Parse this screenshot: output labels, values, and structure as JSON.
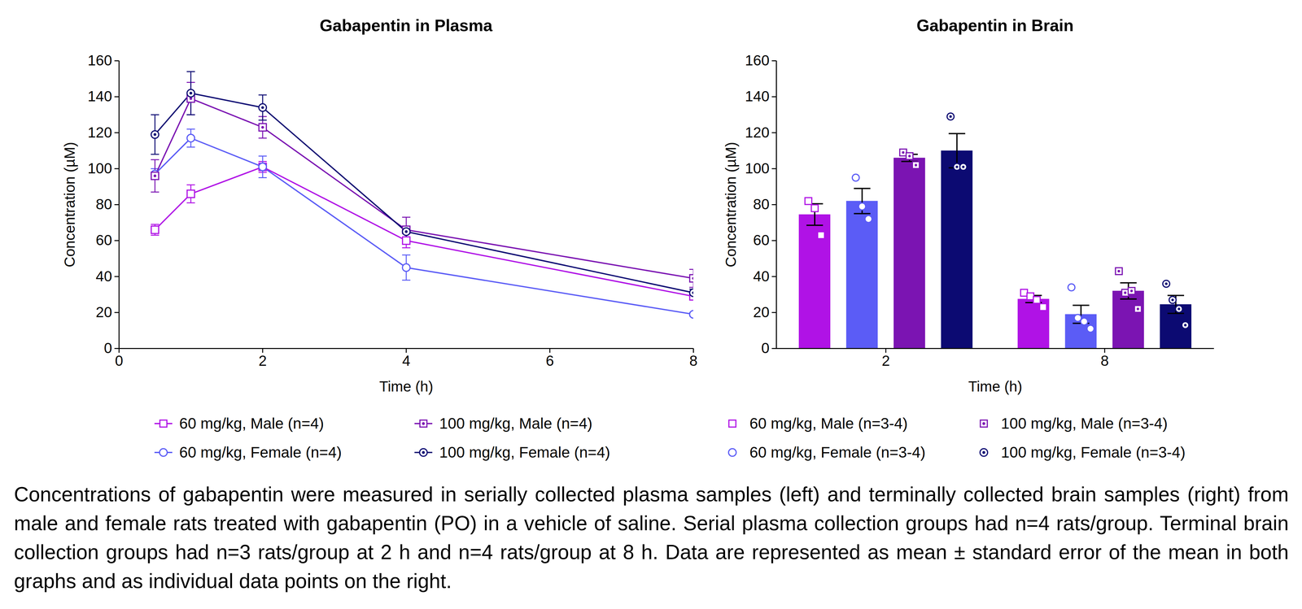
{
  "chart_data": [
    {
      "type": "line",
      "title": "Gabapentin in Plasma",
      "x_label": "Time (h)",
      "y_label": "Concentration (µM)",
      "x": [
        0.5,
        1,
        2,
        4,
        8
      ],
      "xlim": [
        0,
        8
      ],
      "xticks": [
        0,
        2,
        4,
        6,
        8
      ],
      "ylim": [
        0,
        160
      ],
      "yticks": [
        0,
        20,
        40,
        60,
        80,
        100,
        120,
        140,
        160
      ],
      "series": [
        {
          "name": "60 mg/kg, Male (n=4)",
          "color": "#b012e6",
          "marker": "square",
          "values": [
            66,
            86,
            101,
            60,
            29
          ],
          "error": [
            3,
            5,
            3,
            4,
            2
          ]
        },
        {
          "name": "60 mg/kg, Female (n=4)",
          "color": "#5b5cf6",
          "marker": "circle",
          "values": [
            97,
            117,
            101,
            45,
            19
          ],
          "error": [
            3,
            5,
            6,
            7,
            1
          ]
        },
        {
          "name": "100 mg/kg, Male (n=4)",
          "color": "#7b14b2",
          "marker": "square-dot",
          "values": [
            96,
            139,
            123,
            66,
            39
          ],
          "error": [
            9,
            9,
            6,
            7,
            5
          ]
        },
        {
          "name": "100 mg/kg, Female (n=4)",
          "color": "#0c0a72",
          "marker": "circle-dot",
          "values": [
            119,
            142,
            134,
            65,
            31
          ],
          "error": [
            11,
            12,
            7,
            3,
            2
          ]
        }
      ]
    },
    {
      "type": "bar",
      "title": "Gabapentin in Brain",
      "x_label": "Time (h)",
      "y_label": "Concentration (µM)",
      "categories": [
        "2",
        "8"
      ],
      "ylim": [
        0,
        160
      ],
      "yticks": [
        0,
        20,
        40,
        60,
        80,
        100,
        120,
        140,
        160
      ],
      "series": [
        {
          "name": "60 mg/kg, Male (n=3-4)",
          "color": "#b012e6",
          "marker": "square",
          "values": [
            74.5,
            27.5
          ],
          "error": [
            6,
            2
          ],
          "points": [
            [
              82,
              78,
              63
            ],
            [
              31,
              29,
              27,
              23
            ]
          ]
        },
        {
          "name": "60 mg/kg, Female (n=3-4)",
          "color": "#5b5cf6",
          "marker": "circle",
          "values": [
            82,
            19
          ],
          "error": [
            7,
            5
          ],
          "points": [
            [
              95,
              79,
              72
            ],
            [
              34,
              17,
              15,
              11
            ]
          ]
        },
        {
          "name": "100 mg/kg, Male (n=3-4)",
          "color": "#7b14b2",
          "marker": "square-dot",
          "values": [
            106,
            32
          ],
          "error": [
            2,
            4.5
          ],
          "points": [
            [
              109,
              107,
              102
            ],
            [
              43,
              31,
              32,
              22
            ]
          ]
        },
        {
          "name": "100 mg/kg, Female (n=3-4)",
          "color": "#0c0a72",
          "marker": "circle-dot",
          "values": [
            110,
            24.5
          ],
          "error": [
            9.5,
            5
          ],
          "points": [
            [
              129,
              101,
              101
            ],
            [
              36,
              27,
              22,
              13
            ]
          ]
        }
      ]
    }
  ],
  "caption": "Concentrations of gabapentin were measured in serially collected plasma samples (left) and terminally collected brain samples (right) from male and female rats treated with gabapentin (PO) in a vehicle of saline. Serial plasma collection groups had n=4 rats/group. Terminal brain collection groups had n=3 rats/group at 2 h and n=4 rats/group at 8 h. Data are represented as mean ± standard error of the mean in both graphs and as individual data points on the right."
}
